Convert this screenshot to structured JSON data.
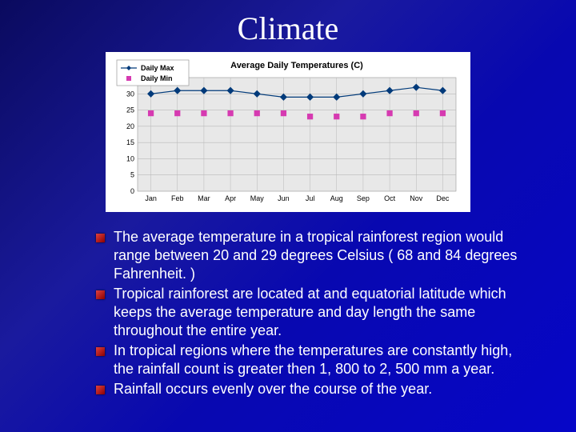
{
  "title": "Climate",
  "chart": {
    "type": "line+scatter",
    "title": "Average Daily Temperatures (C)",
    "title_fontsize": 11,
    "background_color": "#ffffff",
    "plot_background": "#e8e8e8",
    "grid_color": "#b8b8b8",
    "categories": [
      "Jan",
      "Feb",
      "Mar",
      "Apr",
      "May",
      "Jun",
      "Jul",
      "Aug",
      "Sep",
      "Oct",
      "Nov",
      "Dec"
    ],
    "ylim": [
      0,
      35
    ],
    "ytick_step": 5,
    "yticks": [
      0,
      5,
      10,
      15,
      20,
      25,
      30,
      35
    ],
    "axis_fontsize": 9,
    "legend": {
      "position": "top-left",
      "items": [
        {
          "label": "Daily Max",
          "marker": "diamond-line",
          "color": "#003a7a"
        },
        {
          "label": "Daily Min",
          "marker": "square",
          "color": "#d63ab1"
        }
      ],
      "fontsize": 9,
      "border_color": "#999999"
    },
    "series": [
      {
        "name": "Daily Max",
        "type": "line",
        "color": "#003a7a",
        "marker": "diamond",
        "marker_size": 5,
        "line_width": 1.2,
        "values": [
          30,
          31,
          31,
          31,
          30,
          29,
          29,
          29,
          30,
          31,
          32,
          31
        ]
      },
      {
        "name": "Daily Min",
        "type": "scatter",
        "color": "#d63ab1",
        "marker": "square",
        "marker_size": 5,
        "values": [
          24,
          24,
          24,
          24,
          24,
          24,
          23,
          23,
          23,
          24,
          24,
          24
        ]
      }
    ]
  },
  "bullets": [
    "The average temperature in a tropical rainforest region would range between 20 and 29 degrees Celsius ( 68 and 84 degrees Fahrenheit. )",
    "Tropical rainforest are located at and equatorial latitude which keeps the average temperature and day length the same throughout the entire year.",
    "In tropical regions where the temperatures are constantly high, the rainfall count is greater then 1, 800 to 2, 500 mm a year.",
    "Rainfall occurs evenly over the course of the year."
  ]
}
